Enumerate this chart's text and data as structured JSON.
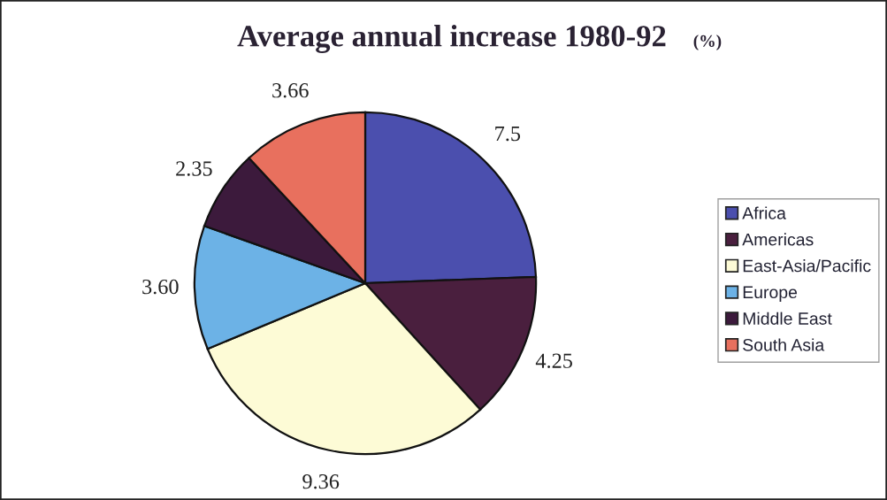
{
  "chart_data": {
    "type": "pie",
    "title": "Average annual increase 1980-92",
    "subtitle": "(%)",
    "categories": [
      "Africa",
      "Americas",
      "East-Asia/Pacific",
      "Europe",
      "Middle East",
      "South Asia"
    ],
    "values": [
      7.5,
      4.25,
      9.36,
      3.6,
      2.35,
      3.66
    ],
    "value_labels": [
      "7.5",
      "4.25",
      "9.36",
      "3.60",
      "2.35",
      "3.66"
    ],
    "colors": [
      "#4b4fae",
      "#4a1f3e",
      "#fdfbd6",
      "#6cb2e6",
      "#3c1a3c",
      "#e8705e"
    ],
    "legend": "right"
  }
}
